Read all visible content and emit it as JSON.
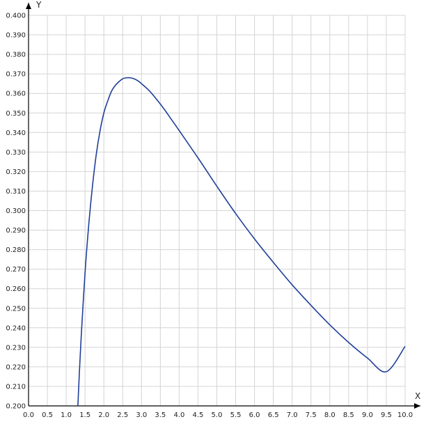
{
  "chart_data": {
    "type": "line",
    "xlabel": "X",
    "ylabel": "Y",
    "xlim": [
      0.0,
      10.0
    ],
    "ylim": [
      0.2,
      0.4
    ],
    "grid": true,
    "x_ticks": [
      "0.0",
      "0.5",
      "1.0",
      "1.5",
      "2.0",
      "2.5",
      "3.0",
      "3.5",
      "4.0",
      "4.5",
      "5.0",
      "5.5",
      "6.0",
      "6.5",
      "7.0",
      "7.5",
      "8.0",
      "8.5",
      "9.0",
      "9.5",
      "10.0"
    ],
    "y_ticks": [
      "0.200",
      "0.210",
      "0.220",
      "0.230",
      "0.240",
      "0.250",
      "0.260",
      "0.270",
      "0.280",
      "0.290",
      "0.300",
      "0.310",
      "0.320",
      "0.330",
      "0.340",
      "0.350",
      "0.360",
      "0.370",
      "0.380",
      "0.390",
      "0.400"
    ],
    "series": [
      {
        "color": "#1f3f99",
        "x": [
          1.31,
          1.35,
          1.4,
          1.5,
          1.6,
          1.7,
          1.8,
          1.9,
          2.0,
          2.1,
          2.2,
          2.3,
          2.4,
          2.5,
          2.6,
          2.7,
          2.8,
          2.9,
          3.0,
          3.2,
          3.4,
          3.6,
          3.8,
          4.0,
          4.5,
          5.0,
          5.5,
          6.0,
          6.5,
          7.0,
          7.5,
          8.0,
          8.5,
          9.0,
          9.5,
          10.0
        ],
        "y": [
          0.2,
          0.217,
          0.236,
          0.268,
          0.293,
          0.313,
          0.329,
          0.341,
          0.35,
          0.356,
          0.361,
          0.364,
          0.366,
          0.3675,
          0.368,
          0.368,
          0.3675,
          0.3665,
          0.365,
          0.3615,
          0.357,
          0.352,
          0.3465,
          0.341,
          0.327,
          0.3125,
          0.2985,
          0.2855,
          0.2735,
          0.262,
          0.2515,
          0.2415,
          0.2325,
          0.2245,
          0.2175,
          0.2305
        ]
      }
    ]
  }
}
